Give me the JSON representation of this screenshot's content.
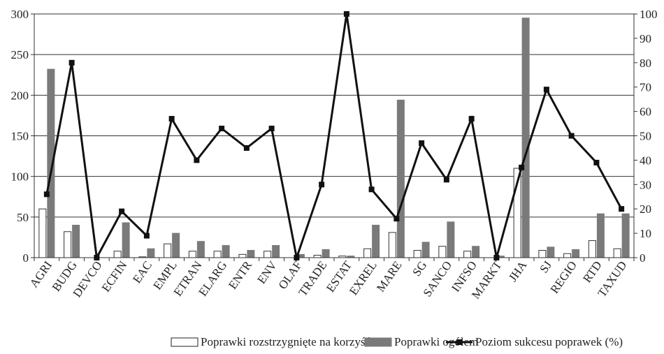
{
  "chart_data": {
    "type": "bar",
    "title": "",
    "xlabel": "",
    "ylabel": "",
    "categories": [
      "AGRI",
      "BUDG",
      "DEVCO",
      "ECFIN",
      "EAC",
      "EMPL",
      "ETRAN",
      "ELARG",
      "ENTR",
      "ENV",
      "OLAF",
      "TRADE",
      "ESTAT",
      "EXREL",
      "MARE",
      "SG",
      "SANCO",
      "INFSO",
      "MARKT",
      "JHA",
      "SJ",
      "REGIO",
      "RTD",
      "TAXUD"
    ],
    "ylim": [
      0,
      300
    ],
    "y2lim": [
      0,
      100
    ],
    "y_ticks": [
      "0",
      "50",
      "100",
      "150",
      "200",
      "250",
      "300"
    ],
    "y2_ticks": [
      "0",
      "10",
      "20",
      "30",
      "40",
      "50",
      "60",
      "70",
      "80",
      "90",
      "100"
    ],
    "series": [
      {
        "name": "Poprawki rozstrzygnięte na korzyść PE",
        "kind": "bar",
        "axis": "left",
        "color": "#ffffff",
        "values": [
          60,
          32,
          0,
          8,
          1,
          17,
          8,
          8,
          4,
          8,
          0,
          3,
          2,
          11,
          31,
          9,
          14,
          8,
          0,
          110,
          9,
          5,
          21,
          11
        ]
      },
      {
        "name": "Poprawki ogółem",
        "kind": "bar",
        "axis": "left",
        "color": "#7a7a7a",
        "values": [
          232,
          40,
          0,
          43,
          11,
          30,
          20,
          15,
          9,
          15,
          4,
          10,
          2,
          40,
          194,
          19,
          44,
          14,
          2,
          295,
          13,
          10,
          54,
          54
        ]
      },
      {
        "name": "Poziom sukcesu poprawek (%)",
        "kind": "line",
        "axis": "right",
        "color": "#111111",
        "values": [
          26,
          80,
          0,
          19,
          9,
          57,
          40,
          53,
          45,
          53,
          0,
          30,
          100,
          28,
          16,
          47,
          32,
          57,
          0,
          37,
          69,
          50,
          39,
          20
        ]
      }
    ],
    "grid": true,
    "legend_position": "bottom"
  }
}
